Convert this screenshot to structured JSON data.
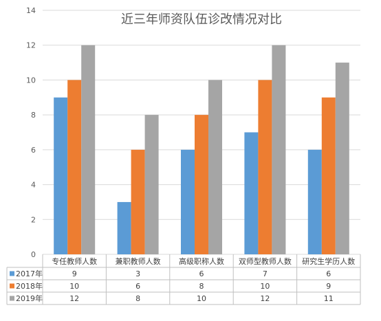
{
  "chart_data": {
    "type": "bar",
    "title": "近三年师资队伍诊改情况对比",
    "categories": [
      "专任教师人数",
      "兼职教师人数",
      "高级职称人数",
      "双师型教师人数",
      "研究生学历人数"
    ],
    "series": [
      {
        "name": "2017年",
        "values": [
          9,
          3,
          6,
          7,
          6
        ],
        "color": "#5b9bd5"
      },
      {
        "name": "2018年",
        "values": [
          10,
          6,
          8,
          10,
          9
        ],
        "color": "#ed7d31"
      },
      {
        "name": "2019年",
        "values": [
          12,
          8,
          10,
          12,
          11
        ],
        "color": "#a5a5a5"
      }
    ],
    "ylim": [
      0,
      14
    ],
    "yticks": [
      0,
      2,
      4,
      6,
      8,
      10,
      12,
      14
    ],
    "grid": true,
    "legend": "data-table-below",
    "gridline_color": "#d9d9d9",
    "axis_text_color": "#595959",
    "title_color": "#595959"
  }
}
